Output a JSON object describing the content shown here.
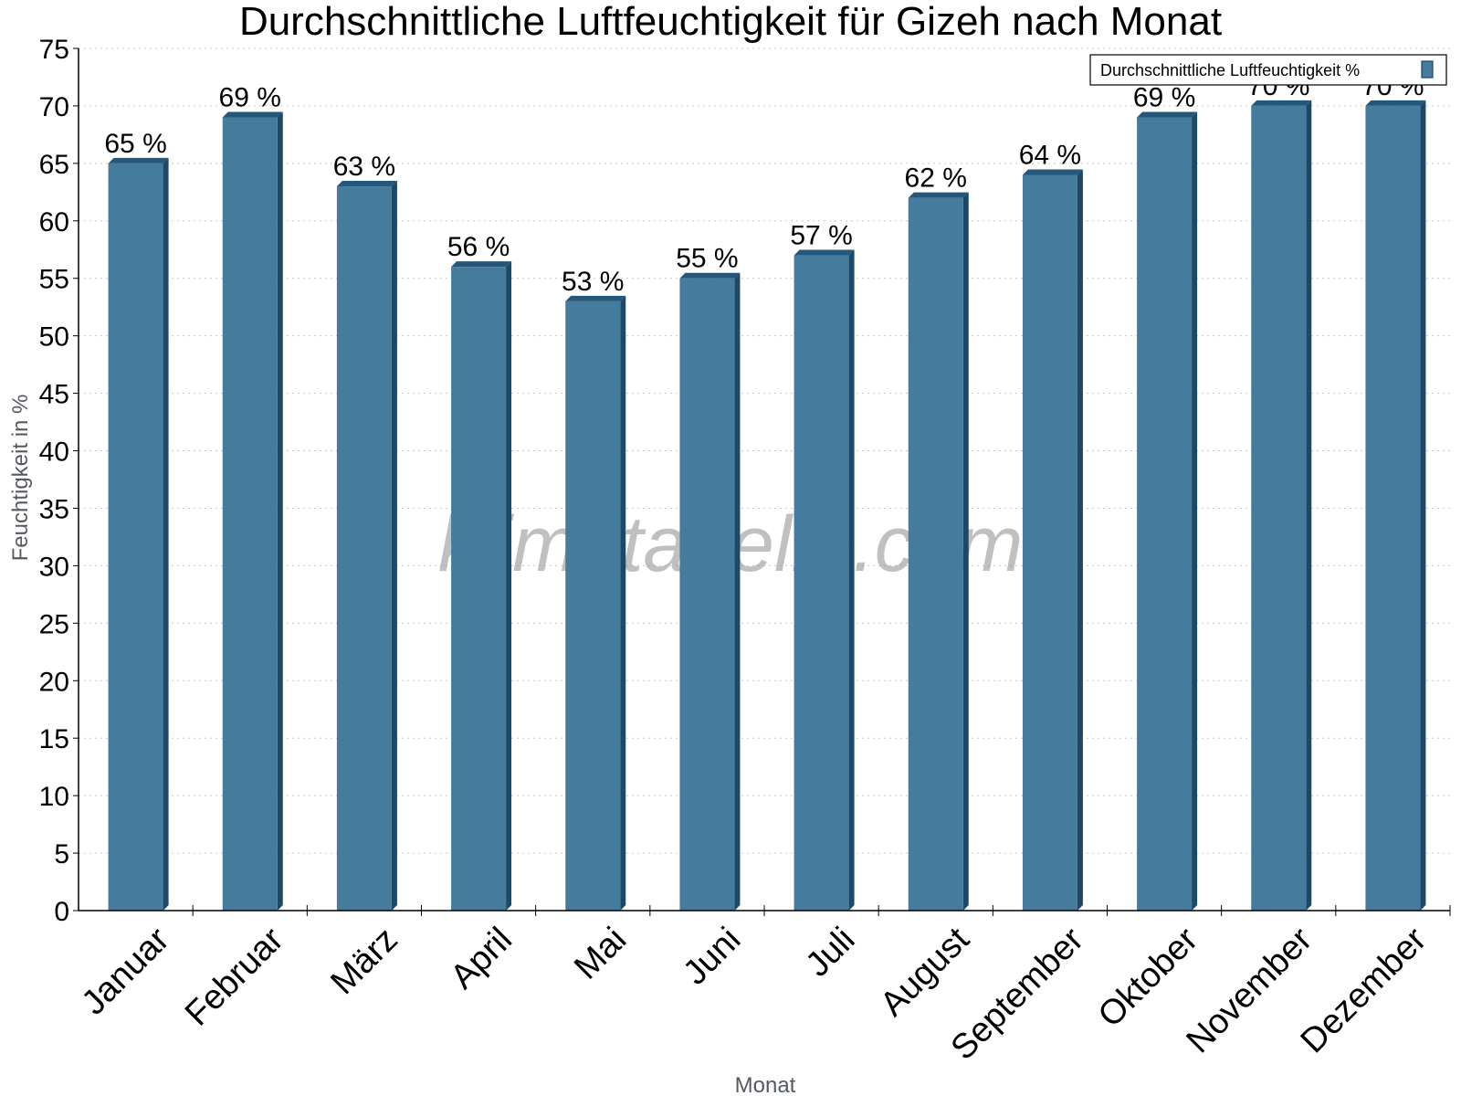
{
  "chart_data": {
    "type": "bar",
    "title": "Durchschnittliche Luftfeuchtigkeit für Gizeh nach Monat",
    "xlabel": "Monat",
    "ylabel": "Feuchtigkeit in %",
    "categories": [
      "Januar",
      "Februar",
      "März",
      "April",
      "Mai",
      "Juni",
      "Juli",
      "August",
      "September",
      "Oktober",
      "November",
      "Dezember"
    ],
    "series": [
      {
        "name": "Durchschnittliche Luftfeuchtigkeit %",
        "values": [
          65,
          69,
          63,
          56,
          53,
          55,
          57,
          62,
          64,
          69,
          70,
          70
        ],
        "labels": [
          "65 %",
          "69 %",
          "63 %",
          "56 %",
          "53 %",
          "55 %",
          "57 %",
          "62 %",
          "64 %",
          "69 %",
          "70 %",
          "70 %"
        ],
        "color": "#457b9d"
      }
    ],
    "ylim": [
      0,
      75
    ],
    "yticks": [
      0,
      5,
      10,
      15,
      20,
      25,
      30,
      35,
      40,
      45,
      50,
      55,
      60,
      65,
      70,
      75
    ],
    "grid": true,
    "legend": "top-right",
    "watermark": "klimatabelle.com"
  }
}
